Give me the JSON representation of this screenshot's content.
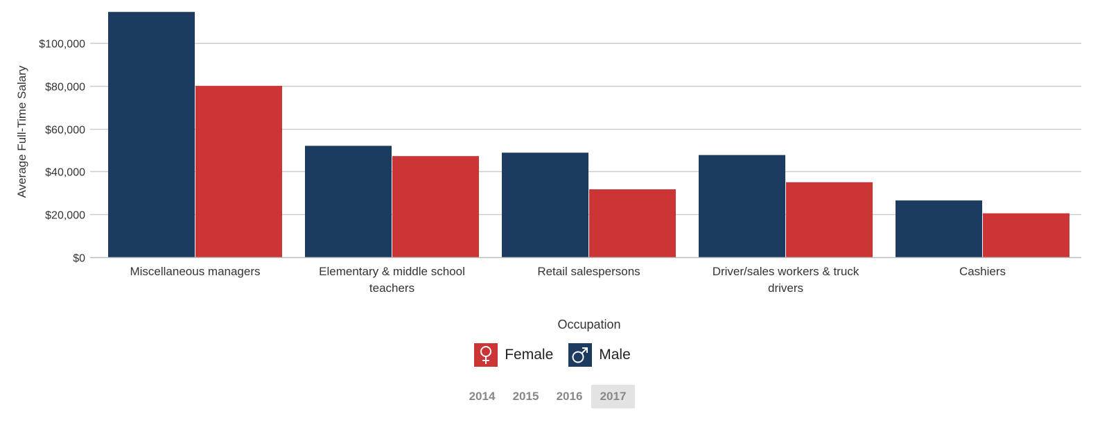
{
  "chart_data": {
    "type": "bar",
    "xlabel": "Occupation",
    "ylabel": "Average Full-Time Salary",
    "ylim": [
      0,
      115000
    ],
    "yticks": [
      0,
      20000,
      40000,
      60000,
      80000,
      100000
    ],
    "ytick_labels": [
      "$0",
      "$20,000",
      "$40,000",
      "$60,000",
      "$80,000",
      "$100,000"
    ],
    "grid": true,
    "categories": [
      [
        "Miscellaneous managers"
      ],
      [
        "Elementary & middle school",
        "teachers"
      ],
      [
        "Retail salespersons"
      ],
      [
        "Driver/sales workers & truck",
        "drivers"
      ],
      [
        "Cashiers"
      ]
    ],
    "series": [
      {
        "name": "Male",
        "color": "#1b3b60",
        "values": [
          114500,
          52000,
          48800,
          47700,
          26500
        ]
      },
      {
        "name": "Female",
        "color": "#cc3536",
        "values": [
          80000,
          47200,
          31700,
          35000,
          20500
        ]
      }
    ],
    "legend_placement": "bottom"
  },
  "legend": {
    "items": [
      {
        "label": "Female",
        "color": "#cc3536",
        "icon": "female-symbol-icon"
      },
      {
        "label": "Male",
        "color": "#1b3b60",
        "icon": "male-symbol-icon"
      }
    ]
  },
  "year_tabs": {
    "items": [
      "2014",
      "2015",
      "2016",
      "2017"
    ],
    "active": "2017"
  }
}
